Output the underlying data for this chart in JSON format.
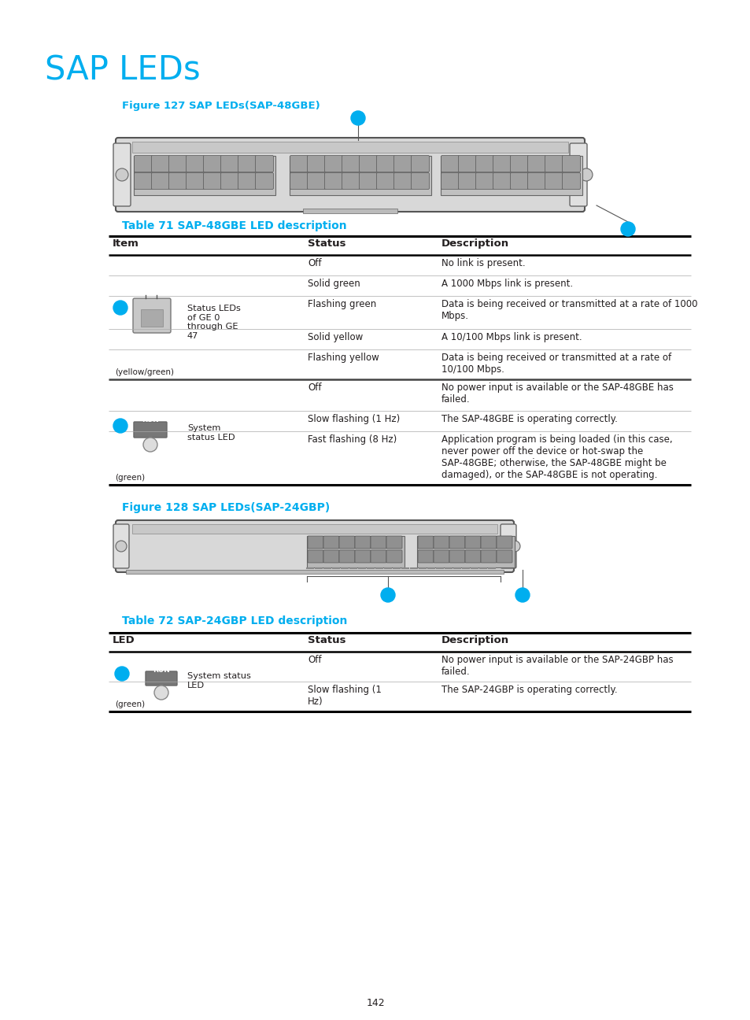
{
  "title": "SAP LEDs",
  "title_color": "#00AEEF",
  "fig_caption1": "Figure 127 SAP LEDs(SAP-48GBE)",
  "fig_caption2": "Figure 128 SAP LEDs(SAP-24GBP)",
  "table71_title": "Table 71 SAP-48GBE LED description",
  "table72_title": "Table 72 SAP-24GBP LED description",
  "caption_color": "#00AEEF",
  "page_number": "142",
  "bg_color": "#ffffff",
  "text_color": "#231f20",
  "table71_headers": [
    "Item",
    "Status",
    "Description"
  ],
  "table72_headers": [
    "LED",
    "Status",
    "Description"
  ]
}
